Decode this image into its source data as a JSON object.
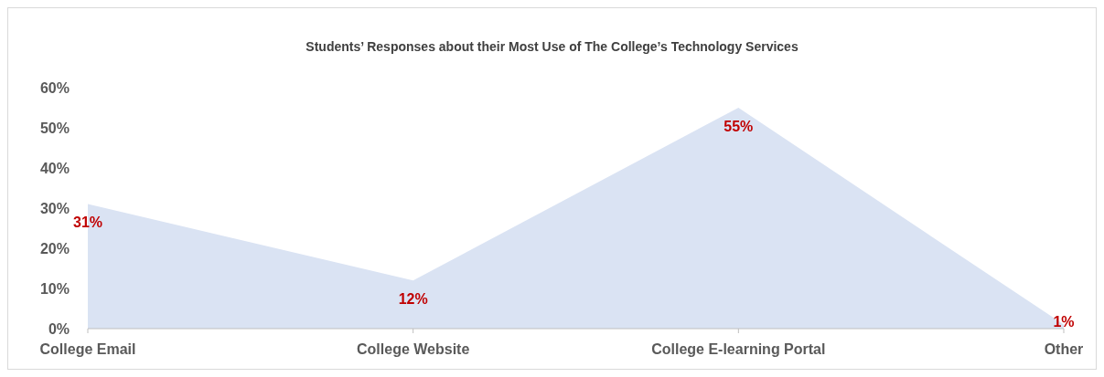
{
  "chart_data": {
    "type": "area",
    "title": "Students’ Responses about their Most Use of The College’s Technology Services",
    "categories": [
      "College Email",
      "College Website",
      "College E-learning Portal",
      "Other"
    ],
    "series": [
      {
        "color": "#dae3f3",
        "values": [
          31,
          12,
          55,
          1
        ],
        "value_labels": [
          "31%",
          "12%",
          "55%",
          "1%"
        ]
      }
    ],
    "ylim": [
      0,
      60
    ],
    "yticks": [
      {
        "value": 0,
        "label": "0%"
      },
      {
        "value": 10,
        "label": "10%"
      },
      {
        "value": 20,
        "label": "20%"
      },
      {
        "value": 30,
        "label": "30%"
      },
      {
        "value": 40,
        "label": "40%"
      },
      {
        "value": 50,
        "label": "50%"
      },
      {
        "value": 60,
        "label": "60%"
      }
    ],
    "grid": false
  }
}
